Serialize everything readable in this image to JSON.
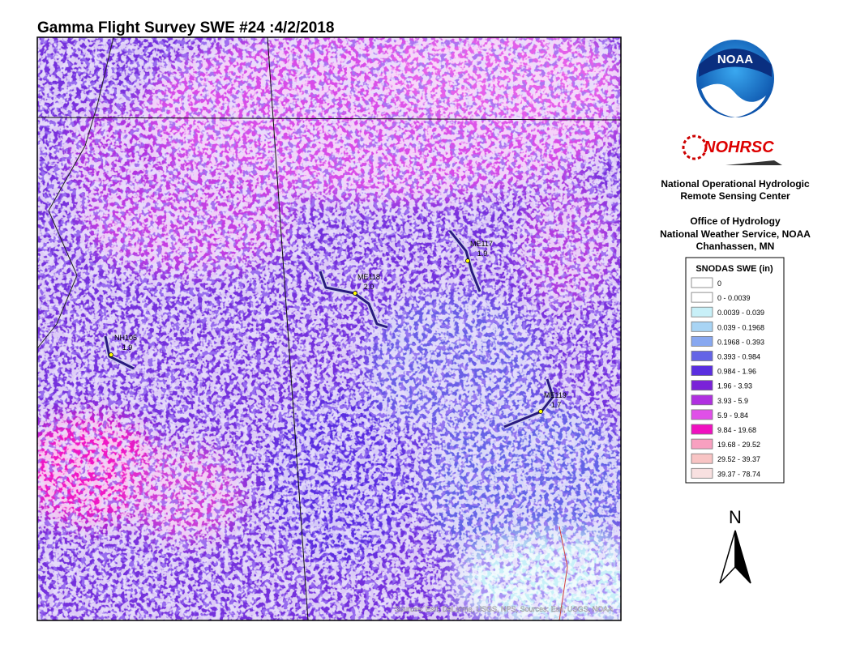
{
  "header": {
    "title": "Gamma Flight Survey SWE #24 :4/2/2018"
  },
  "organization": {
    "logo_text": "NOAA",
    "program": "NOHRSC",
    "lines": [
      "National Operational Hydrologic",
      "Remote Sensing Center",
      "Office of Hydrology",
      "National Weather Service, NOAA",
      "Chanhassen, MN"
    ]
  },
  "legend": {
    "title": "SNODAS SWE (in)",
    "items": [
      {
        "label": "0",
        "color": "#ffffff"
      },
      {
        "label": "0 - 0.0039",
        "color": "#ffffff"
      },
      {
        "label": "0.0039 - 0.039",
        "color": "#c8f0f8"
      },
      {
        "label": "0.039 - 0.1968",
        "color": "#a8d4f4"
      },
      {
        "label": "0.1968 - 0.393",
        "color": "#88a8f0"
      },
      {
        "label": "0.393 - 0.984",
        "color": "#6464e6"
      },
      {
        "label": "0.984 - 1.96",
        "color": "#5a2ee0"
      },
      {
        "label": "1.96 - 3.93",
        "color": "#7a22d8"
      },
      {
        "label": "3.93 - 5.9",
        "color": "#b030e0"
      },
      {
        "label": "5.9 - 9.84",
        "color": "#e050e8"
      },
      {
        "label": "9.84 - 19.68",
        "color": "#f010c0"
      },
      {
        "label": "19.68 - 29.52",
        "color": "#f8a0c0"
      },
      {
        "label": "29.52 - 39.37",
        "color": "#f8c4c4"
      },
      {
        "label": "39.37 - 78.74",
        "color": "#f8e0e0"
      }
    ]
  },
  "map": {
    "flight_lines": [
      {
        "name": "ME117",
        "value": "1.9"
      },
      {
        "name": "ME118",
        "value": "2.0"
      },
      {
        "name": "NH105",
        "value": "1.9"
      },
      {
        "name": "ME119",
        "value": "1.7"
      }
    ],
    "credits": "Sources: Esri, DeLorme, USGS, NPS, Sources: Esri, USGS, NOAA",
    "north": "N"
  }
}
